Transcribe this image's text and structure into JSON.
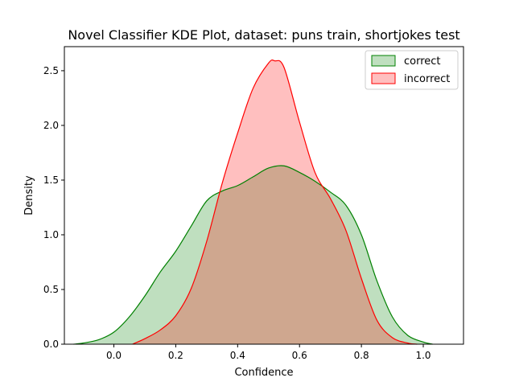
{
  "chart_data": {
    "type": "area",
    "title": "Novel Classifier KDE Plot, dataset: puns train, shortjokes test",
    "xlabel": "Confidence",
    "ylabel": "Density",
    "xlim": [
      -0.16,
      1.13
    ],
    "ylim": [
      0,
      2.72
    ],
    "xticks": [
      0.0,
      0.2,
      0.4,
      0.6,
      0.8,
      1.0
    ],
    "xtick_labels": [
      "0.0",
      "0.2",
      "0.4",
      "0.6",
      "0.8",
      "1.0"
    ],
    "yticks": [
      0.0,
      0.5,
      1.0,
      1.5,
      2.0,
      2.5
    ],
    "ytick_labels": [
      "0.0",
      "0.5",
      "1.0",
      "1.5",
      "2.0",
      "2.5"
    ],
    "grid": false,
    "legend": {
      "position": "top-right"
    },
    "series": [
      {
        "name": "correct",
        "color": "#008000",
        "fill": "#008000",
        "fill_opacity": 0.25,
        "x": [
          -0.13,
          -0.1,
          -0.05,
          0.0,
          0.05,
          0.1,
          0.15,
          0.2,
          0.25,
          0.3,
          0.35,
          0.4,
          0.45,
          0.5,
          0.55,
          0.6,
          0.65,
          0.7,
          0.75,
          0.8,
          0.85,
          0.9,
          0.95,
          1.0,
          1.03
        ],
        "y": [
          0.0,
          0.01,
          0.04,
          0.11,
          0.25,
          0.44,
          0.66,
          0.85,
          1.08,
          1.31,
          1.4,
          1.45,
          1.53,
          1.61,
          1.63,
          1.57,
          1.49,
          1.39,
          1.27,
          1.0,
          0.58,
          0.25,
          0.08,
          0.02,
          0.0
        ]
      },
      {
        "name": "incorrect",
        "color": "#ff0000",
        "fill": "#ff0000",
        "fill_opacity": 0.25,
        "x": [
          0.06,
          0.1,
          0.15,
          0.2,
          0.25,
          0.3,
          0.35,
          0.4,
          0.45,
          0.5,
          0.52,
          0.55,
          0.6,
          0.65,
          0.7,
          0.75,
          0.8,
          0.85,
          0.9,
          0.95,
          0.98
        ],
        "y": [
          0.0,
          0.05,
          0.13,
          0.26,
          0.51,
          0.94,
          1.47,
          1.93,
          2.34,
          2.57,
          2.59,
          2.53,
          2.03,
          1.57,
          1.33,
          1.04,
          0.6,
          0.22,
          0.06,
          0.01,
          0.0
        ]
      }
    ]
  }
}
